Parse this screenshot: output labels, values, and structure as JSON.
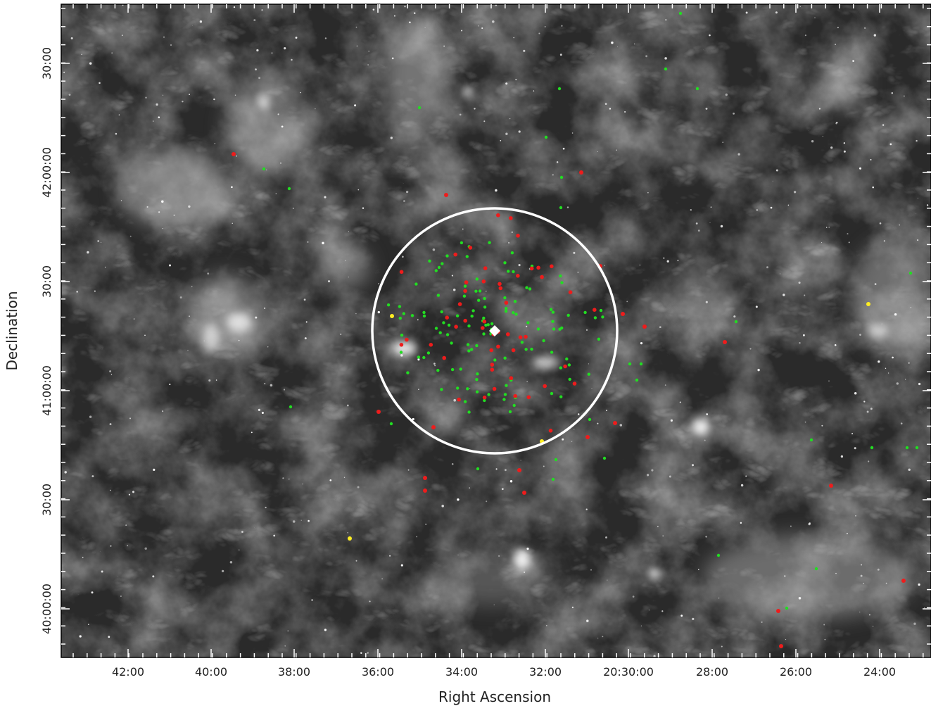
{
  "figure": {
    "xlabel": "Right Ascension",
    "ylabel": "Declination",
    "x_tick_labels": [
      "42:00",
      "40:00",
      "38:00",
      "36:00",
      "34:00",
      "32:00",
      "20:30:00",
      "28:00",
      "26:00",
      "24:00"
    ],
    "y_tick_labels": [
      "30:00",
      "42:00:00",
      "30:00",
      "41:00:00",
      "30:00",
      "40:00:00"
    ],
    "marker_colors": {
      "green": "#22dd22",
      "red": "#ee1c1c",
      "yellow": "#ffee22",
      "circle": "#ffffff"
    }
  }
}
